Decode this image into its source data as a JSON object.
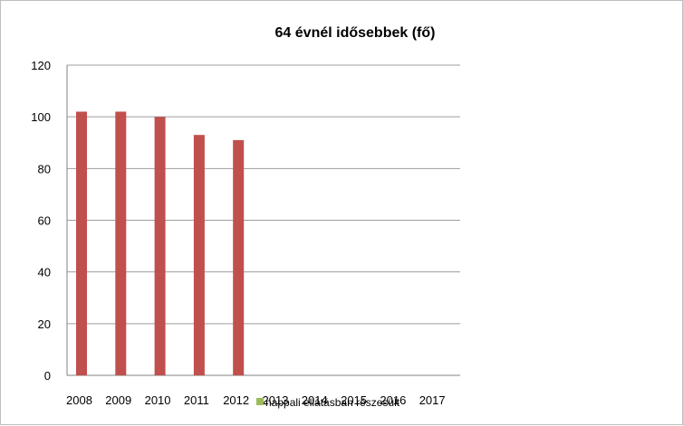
{
  "chart_data": {
    "type": "bar",
    "title": "64 évnél idősebbek (fő)",
    "categories": [
      "2008",
      "2009",
      "2010",
      "2011",
      "2012",
      "2013",
      "2014",
      "2015",
      "2016",
      "2017"
    ],
    "series": [
      {
        "name": "",
        "color": "#c0504d",
        "values": [
          102,
          102,
          100,
          93,
          91,
          null,
          null,
          null,
          null,
          null
        ]
      },
      {
        "name": "nappali ellátásban részesült",
        "color": "#9bbb59",
        "values": [
          null,
          null,
          null,
          null,
          null,
          null,
          null,
          null,
          null,
          null
        ]
      }
    ],
    "ylim": [
      0,
      120
    ],
    "yticks": [
      0,
      20,
      40,
      60,
      80,
      100,
      120
    ],
    "grid": true,
    "legend": "bottom"
  }
}
